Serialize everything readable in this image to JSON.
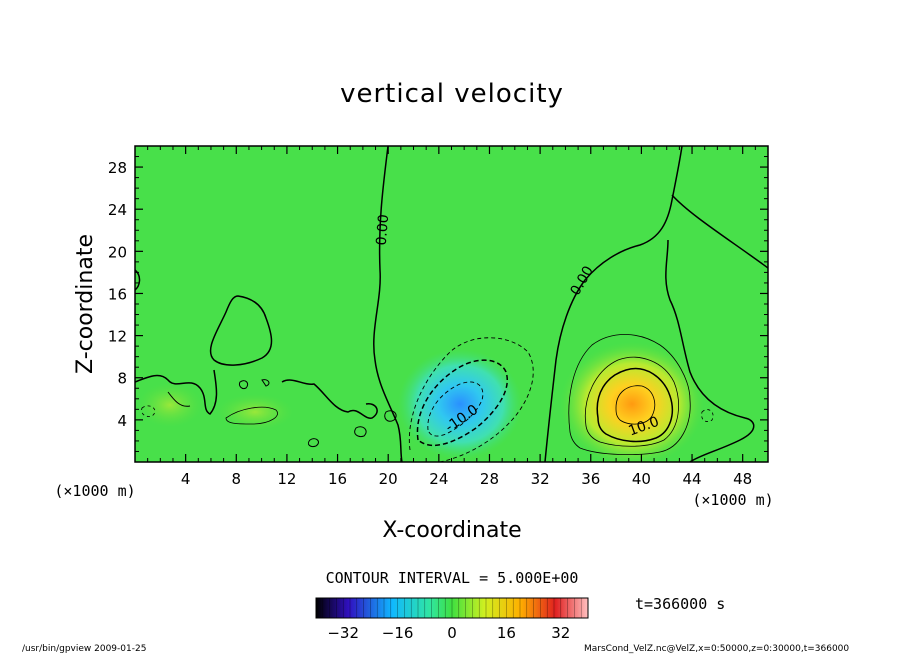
{
  "chart_data": {
    "type": "heatmap",
    "title": "vertical velocity",
    "xlabel": "X-coordinate",
    "ylabel": "Z-coordinate",
    "x_unit_label": "(×1000 m)",
    "y_unit_label": "(×1000 m)",
    "xlim": [
      0,
      50
    ],
    "ylim": [
      0,
      30
    ],
    "x_ticks": [
      4,
      8,
      12,
      16,
      20,
      24,
      28,
      32,
      36,
      40,
      44,
      48
    ],
    "y_ticks": [
      4,
      8,
      12,
      16,
      20,
      24,
      28
    ],
    "contour_interval_label": "CONTOUR INTERVAL = 5.000E+00",
    "contour_labels": [
      {
        "text": "0.00",
        "x": 19.9,
        "y": 22.0,
        "rot": -85
      },
      {
        "text": "0.00",
        "x": 35.6,
        "y": 17.0,
        "rot": -60
      },
      {
        "text": "-10.0",
        "x": 26.0,
        "y": 3.8,
        "rot": -35
      },
      {
        "text": "10.0",
        "x": 40.3,
        "y": 3.0,
        "rot": -20
      }
    ],
    "features": [
      {
        "kind": "downdraft",
        "x": 25.5,
        "y": 5.0,
        "peak": -22
      },
      {
        "kind": "updraft",
        "x": 39.3,
        "y": 5.0,
        "peak": 20
      }
    ],
    "colorbar": {
      "min": -40,
      "max": 40,
      "ticks": [
        -32,
        -16,
        0,
        16,
        32
      ]
    },
    "time_label": "t=366000 s"
  },
  "footer": {
    "left": "/usr/bin/gpview  2009-01-25",
    "right": "MarsCond_VelZ.nc@VelZ,x=0:50000,z=0:30000,t=366000"
  }
}
